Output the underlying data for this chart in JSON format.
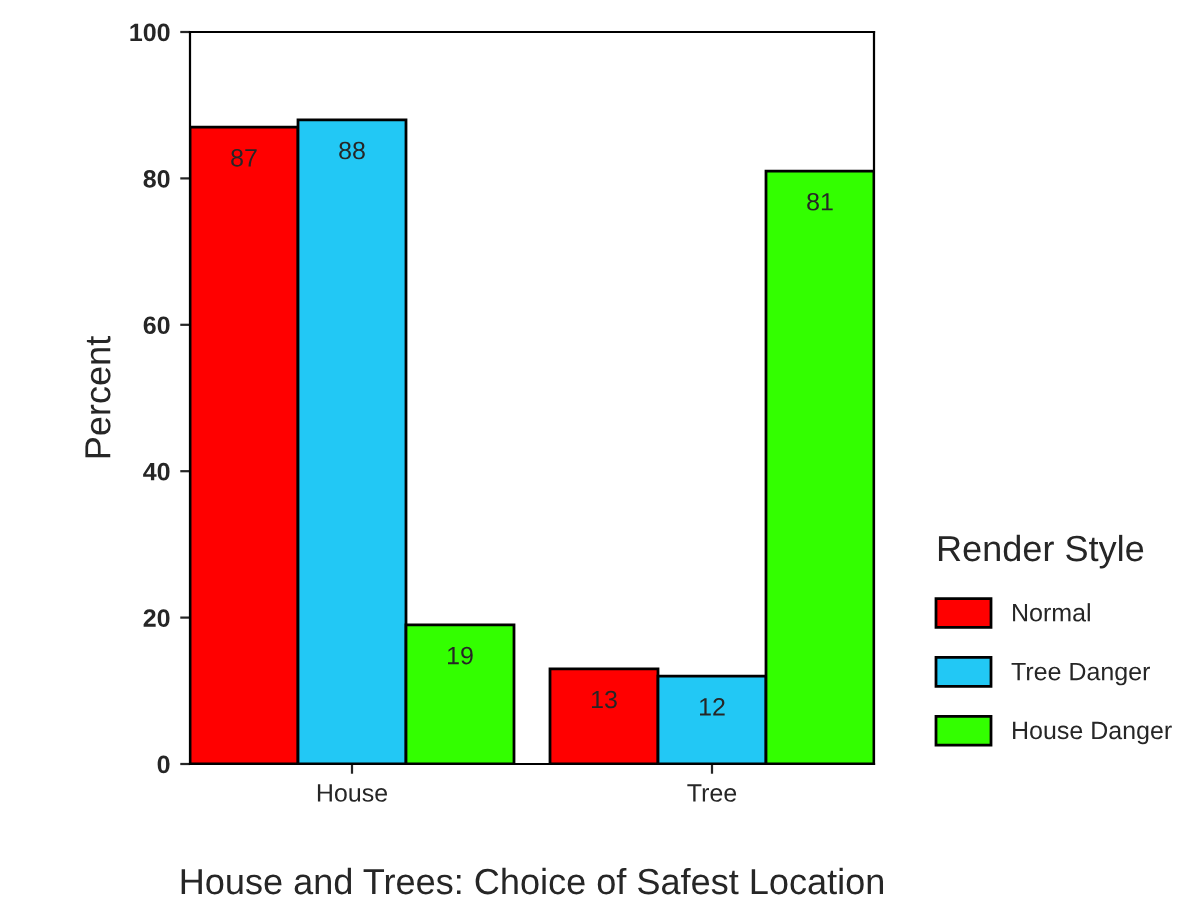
{
  "chart_data": {
    "type": "bar",
    "xlabel": "House and Trees: Choice of Safest Location",
    "ylabel": "Percent",
    "legend_title": "Render Style",
    "categories": [
      "House",
      "Tree"
    ],
    "series": [
      {
        "name": "Normal",
        "color": "#ff0000",
        "values": [
          87,
          13
        ]
      },
      {
        "name": "Tree Danger",
        "color": "#22c8f5",
        "values": [
          88,
          12
        ]
      },
      {
        "name": "House Danger",
        "color": "#33ff00",
        "values": [
          19,
          81
        ]
      }
    ],
    "ylim": [
      0,
      100
    ],
    "yticks": [
      0,
      20,
      40,
      60,
      80,
      100
    ],
    "data_labels": true,
    "legend": "right",
    "grid": false
  }
}
